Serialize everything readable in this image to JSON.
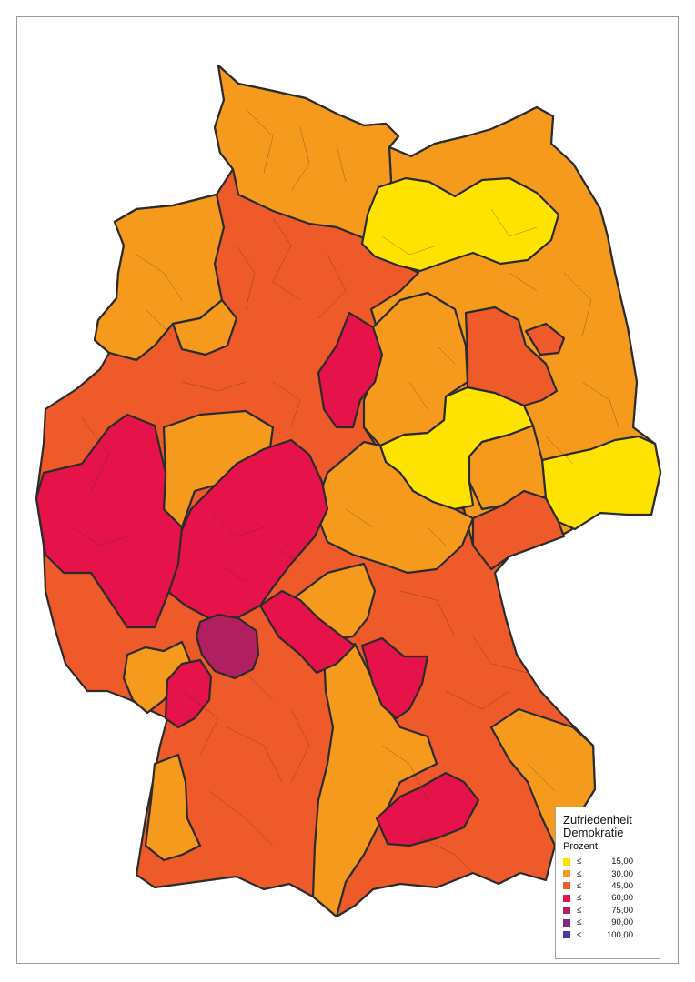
{
  "map": {
    "country": "Germany",
    "colors": {
      "c15": "#ffe300",
      "c30": "#f59a1c",
      "c45": "#ee5a2a",
      "c60": "#e5134a",
      "c75": "#b02061",
      "c90": "#7b2a86",
      "c100": "#4a36a8"
    }
  },
  "legend": {
    "title1": "Zufriedenheit",
    "title2": "Demokratie",
    "unit": "Prozent",
    "items": [
      {
        "op": "≤",
        "value": "15,00",
        "color": "#ffe300"
      },
      {
        "op": "≤",
        "value": "30,00",
        "color": "#f59a1c"
      },
      {
        "op": "≤",
        "value": "45,00",
        "color": "#ee5a2a"
      },
      {
        "op": "≤",
        "value": "60,00",
        "color": "#e5134a"
      },
      {
        "op": "≤",
        "value": "75,00",
        "color": "#b02061"
      },
      {
        "op": "≤",
        "value": "90,00",
        "color": "#7b2a86"
      },
      {
        "op": "≤",
        "value": "100,00",
        "color": "#4a36a8"
      }
    ]
  }
}
